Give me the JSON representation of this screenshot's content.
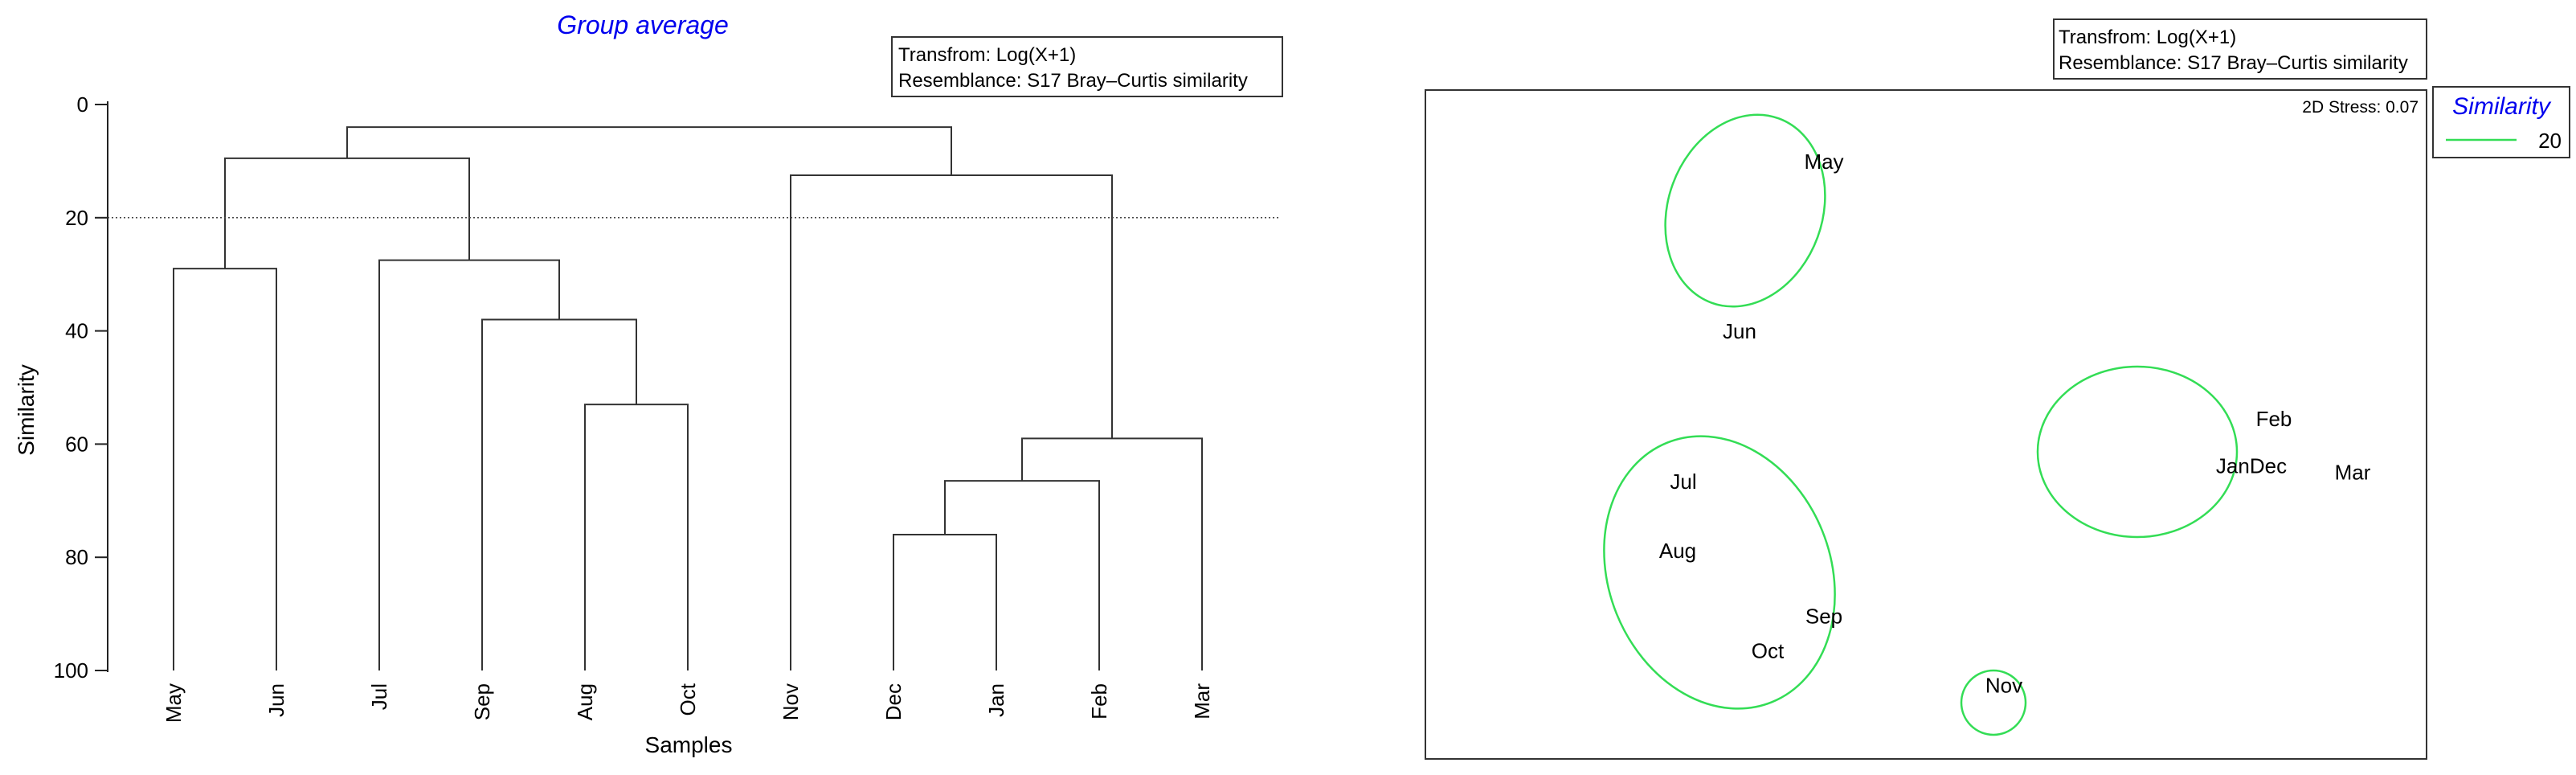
{
  "dendrogram": {
    "title": "Group average",
    "info_lines": [
      "Transfrom: Log(X+1)",
      "Resemblance: S17 Bray–Curtis similarity"
    ],
    "xlabel": "Samples",
    "ylabel": "Similarity",
    "yticks": [
      0,
      20,
      40,
      60,
      80,
      100
    ],
    "ylim": [
      0,
      100
    ],
    "threshold": 20
  },
  "mds": {
    "info_lines": [
      "Transfrom: Log(X+1)",
      "Resemblance: S17 Bray–Curtis similarity"
    ],
    "stress_label": "2D Stress: 0.07",
    "legend_title": "Similarity",
    "legend_value": "20",
    "ellipse_color": "#33dd55"
  },
  "chart_data": [
    {
      "type": "dendrogram",
      "title": "Group average",
      "xlabel": "Samples",
      "ylabel": "Similarity",
      "ylim": [
        0,
        100
      ],
      "leaves": [
        "May",
        "Jun",
        "Jul",
        "Sep",
        "Aug",
        "Oct",
        "Nov",
        "Dec",
        "Jan",
        "Feb",
        "Mar"
      ],
      "merges": [
        {
          "id": "c1",
          "left": "May",
          "right": "Jun",
          "similarity": 29
        },
        {
          "id": "c2",
          "left": "Aug",
          "right": "Oct",
          "similarity": 53
        },
        {
          "id": "c3",
          "left": "Sep",
          "right": "c2",
          "similarity": 38
        },
        {
          "id": "c4",
          "left": "Jul",
          "right": "c3",
          "similarity": 27.5
        },
        {
          "id": "c5",
          "left": "c1",
          "right": "c4",
          "similarity": 9.5
        },
        {
          "id": "c6",
          "left": "Dec",
          "right": "Jan",
          "similarity": 76
        },
        {
          "id": "c7",
          "left": "c6",
          "right": "Feb",
          "similarity": 66.5
        },
        {
          "id": "c8",
          "left": "c7",
          "right": "Mar",
          "similarity": 59
        },
        {
          "id": "c9",
          "left": "Nov",
          "right": "c8",
          "similarity": 12.5
        },
        {
          "id": "c10",
          "left": "c5",
          "right": "c9",
          "similarity": 4
        }
      ],
      "threshold_line": 20
    },
    {
      "type": "scatter",
      "subtype": "nMDS",
      "stress": 0.07,
      "points": [
        {
          "label": "May",
          "x": -0.3,
          "y": 0.92
        },
        {
          "label": "Jun",
          "x": -0.45,
          "y": 0.38
        },
        {
          "label": "Jul",
          "x": -0.55,
          "y": -0.1
        },
        {
          "label": "Aug",
          "x": -0.56,
          "y": -0.32
        },
        {
          "label": "Sep",
          "x": -0.3,
          "y": -0.53
        },
        {
          "label": "Oct",
          "x": -0.4,
          "y": -0.64
        },
        {
          "label": "Nov",
          "x": 0.02,
          "y": -0.75
        },
        {
          "label": "Feb",
          "x": 0.5,
          "y": 0.1
        },
        {
          "label": "JanDec",
          "x": 0.46,
          "y": -0.05
        },
        {
          "label": "Mar",
          "x": 0.64,
          "y": -0.07
        }
      ],
      "similarity_groups": [
        {
          "level": 20,
          "members": [
            "May",
            "Jun"
          ]
        },
        {
          "level": 20,
          "members": [
            "Jul",
            "Aug",
            "Sep",
            "Oct"
          ]
        },
        {
          "level": 20,
          "members": [
            "Feb",
            "JanDec",
            "Mar"
          ]
        },
        {
          "level": 20,
          "members": [
            "Nov"
          ]
        }
      ]
    }
  ]
}
